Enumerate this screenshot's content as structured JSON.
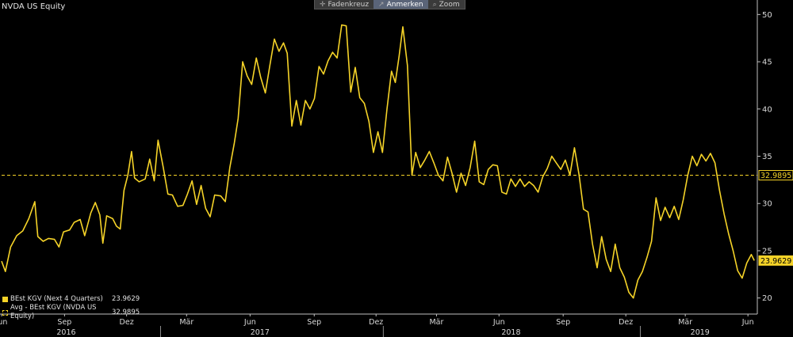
{
  "ticker": "NVDA US Equity",
  "toolbar": [
    {
      "icon": "crosshair-icon",
      "glyph": "✛",
      "label": "Fadenkreuz",
      "active": false
    },
    {
      "icon": "annotate-icon",
      "glyph": "↗",
      "label": "Anmerken",
      "active": true
    },
    {
      "icon": "zoom-icon",
      "glyph": "⌕",
      "label": "Zoom",
      "active": false
    }
  ],
  "legend": [
    {
      "label": "BEst KGV (Next 4 Quarters)",
      "value": "23.9629",
      "color": "#f5d328",
      "style": "solid"
    },
    {
      "label": "Avg - BEst KGV (NVDA US Equity)",
      "value": "32.9895",
      "color": "#f5d328",
      "style": "dashed"
    }
  ],
  "chart_data": {
    "type": "line",
    "y_axis": {
      "ticks": [
        20,
        25,
        30,
        35,
        40,
        45,
        50
      ],
      "range": [
        18.3,
        51.2
      ],
      "side": "right"
    },
    "x_axis": {
      "month_ticks": [
        {
          "label": "Jun",
          "pos": 0.0
        },
        {
          "label": "Sep",
          "pos": 0.0833
        },
        {
          "label": "Dez",
          "pos": 0.1654
        },
        {
          "label": "Mär",
          "pos": 0.2448
        },
        {
          "label": "Jun",
          "pos": 0.3288
        },
        {
          "label": "Sep",
          "pos": 0.4137
        },
        {
          "label": "Dez",
          "pos": 0.4955
        },
        {
          "label": "Mär",
          "pos": 0.5755
        },
        {
          "label": "Jun",
          "pos": 0.6582
        },
        {
          "label": "Sep",
          "pos": 0.7431
        },
        {
          "label": "Dez",
          "pos": 0.826
        },
        {
          "label": "Mär",
          "pos": 0.9047
        },
        {
          "label": "Jun",
          "pos": 0.9876
        }
      ],
      "year_labels": [
        {
          "label": "2016",
          "pos": 0.0855
        },
        {
          "label": "2017",
          "pos": 0.3419
        },
        {
          "label": "2018",
          "pos": 0.6741
        },
        {
          "label": "2019",
          "pos": 0.9242
        }
      ],
      "year_boundaries": [
        0.2104,
        0.5051,
        0.8452
      ]
    },
    "average": {
      "value": 32.9895,
      "label": "32.9895"
    },
    "last": {
      "value": 23.9629,
      "label": "23.9629"
    },
    "series": [
      {
        "name": "BEst KGV (Next 4 Quarters)",
        "color": "#f5d328",
        "values": [
          [
            0.0,
            23.9
          ],
          [
            0.005,
            22.8
          ],
          [
            0.012,
            25.4
          ],
          [
            0.02,
            26.6
          ],
          [
            0.028,
            27.1
          ],
          [
            0.036,
            28.4
          ],
          [
            0.044,
            30.2
          ],
          [
            0.048,
            26.5
          ],
          [
            0.055,
            26.0
          ],
          [
            0.062,
            26.3
          ],
          [
            0.07,
            26.2
          ],
          [
            0.076,
            25.4
          ],
          [
            0.082,
            27.0
          ],
          [
            0.09,
            27.2
          ],
          [
            0.096,
            28.0
          ],
          [
            0.104,
            28.3
          ],
          [
            0.11,
            26.6
          ],
          [
            0.118,
            29.0
          ],
          [
            0.124,
            30.1
          ],
          [
            0.13,
            28.8
          ],
          [
            0.134,
            25.8
          ],
          [
            0.139,
            28.7
          ],
          [
            0.147,
            28.4
          ],
          [
            0.152,
            27.6
          ],
          [
            0.157,
            27.3
          ],
          [
            0.162,
            31.4
          ],
          [
            0.167,
            33.0
          ],
          [
            0.172,
            35.5
          ],
          [
            0.176,
            32.7
          ],
          [
            0.182,
            32.3
          ],
          [
            0.19,
            32.6
          ],
          [
            0.196,
            34.7
          ],
          [
            0.202,
            32.4
          ],
          [
            0.207,
            36.7
          ],
          [
            0.214,
            33.8
          ],
          [
            0.22,
            31.0
          ],
          [
            0.226,
            30.9
          ],
          [
            0.233,
            29.7
          ],
          [
            0.24,
            29.8
          ],
          [
            0.246,
            31.0
          ],
          [
            0.252,
            32.4
          ],
          [
            0.258,
            29.9
          ],
          [
            0.264,
            31.9
          ],
          [
            0.27,
            29.5
          ],
          [
            0.276,
            28.6
          ],
          [
            0.282,
            30.9
          ],
          [
            0.29,
            30.8
          ],
          [
            0.296,
            30.2
          ],
          [
            0.302,
            33.8
          ],
          [
            0.308,
            36.4
          ],
          [
            0.313,
            39.0
          ],
          [
            0.319,
            45.0
          ],
          [
            0.325,
            43.5
          ],
          [
            0.331,
            42.6
          ],
          [
            0.337,
            45.4
          ],
          [
            0.343,
            43.3
          ],
          [
            0.349,
            41.7
          ],
          [
            0.355,
            44.6
          ],
          [
            0.361,
            47.4
          ],
          [
            0.367,
            46.1
          ],
          [
            0.373,
            47.0
          ],
          [
            0.378,
            45.9
          ],
          [
            0.384,
            38.2
          ],
          [
            0.39,
            40.9
          ],
          [
            0.396,
            38.3
          ],
          [
            0.402,
            40.9
          ],
          [
            0.408,
            40.0
          ],
          [
            0.414,
            41.1
          ],
          [
            0.42,
            44.5
          ],
          [
            0.426,
            43.7
          ],
          [
            0.432,
            45.1
          ],
          [
            0.438,
            46.0
          ],
          [
            0.444,
            45.4
          ],
          [
            0.45,
            48.9
          ],
          [
            0.456,
            48.8
          ],
          [
            0.462,
            41.8
          ],
          [
            0.468,
            44.4
          ],
          [
            0.474,
            41.2
          ],
          [
            0.48,
            40.6
          ],
          [
            0.486,
            38.7
          ],
          [
            0.492,
            35.4
          ],
          [
            0.498,
            37.6
          ],
          [
            0.504,
            35.4
          ],
          [
            0.51,
            40.0
          ],
          [
            0.516,
            44.0
          ],
          [
            0.521,
            42.8
          ],
          [
            0.526,
            45.6
          ],
          [
            0.531,
            48.7
          ],
          [
            0.537,
            44.6
          ],
          [
            0.543,
            33.0
          ],
          [
            0.548,
            35.4
          ],
          [
            0.554,
            33.8
          ],
          [
            0.56,
            34.6
          ],
          [
            0.566,
            35.5
          ],
          [
            0.572,
            34.3
          ],
          [
            0.578,
            33.0
          ],
          [
            0.584,
            32.4
          ],
          [
            0.59,
            34.9
          ],
          [
            0.596,
            33.2
          ],
          [
            0.602,
            31.2
          ],
          [
            0.608,
            33.2
          ],
          [
            0.614,
            31.9
          ],
          [
            0.62,
            33.8
          ],
          [
            0.626,
            36.6
          ],
          [
            0.632,
            32.3
          ],
          [
            0.638,
            32.0
          ],
          [
            0.644,
            33.6
          ],
          [
            0.65,
            34.1
          ],
          [
            0.656,
            34.0
          ],
          [
            0.662,
            31.2
          ],
          [
            0.668,
            31.0
          ],
          [
            0.674,
            32.6
          ],
          [
            0.68,
            31.8
          ],
          [
            0.686,
            32.6
          ],
          [
            0.692,
            31.8
          ],
          [
            0.698,
            32.3
          ],
          [
            0.704,
            31.9
          ],
          [
            0.71,
            31.2
          ],
          [
            0.716,
            32.8
          ],
          [
            0.722,
            33.7
          ],
          [
            0.728,
            35.0
          ],
          [
            0.734,
            34.3
          ],
          [
            0.74,
            33.6
          ],
          [
            0.746,
            34.6
          ],
          [
            0.752,
            33.0
          ],
          [
            0.758,
            35.9
          ],
          [
            0.764,
            33.1
          ],
          [
            0.77,
            29.4
          ],
          [
            0.776,
            29.1
          ],
          [
            0.782,
            25.7
          ],
          [
            0.788,
            23.2
          ],
          [
            0.794,
            26.5
          ],
          [
            0.8,
            24.1
          ],
          [
            0.806,
            22.8
          ],
          [
            0.812,
            25.7
          ],
          [
            0.818,
            23.2
          ],
          [
            0.824,
            22.2
          ],
          [
            0.83,
            20.6
          ],
          [
            0.836,
            20.0
          ],
          [
            0.842,
            21.9
          ],
          [
            0.848,
            22.8
          ],
          [
            0.854,
            24.3
          ],
          [
            0.86,
            26.0
          ],
          [
            0.866,
            30.6
          ],
          [
            0.872,
            28.2
          ],
          [
            0.878,
            29.6
          ],
          [
            0.884,
            28.5
          ],
          [
            0.89,
            29.7
          ],
          [
            0.896,
            28.3
          ],
          [
            0.902,
            30.4
          ],
          [
            0.908,
            33.0
          ],
          [
            0.914,
            35.0
          ],
          [
            0.92,
            34.0
          ],
          [
            0.926,
            35.2
          ],
          [
            0.932,
            34.5
          ],
          [
            0.938,
            35.3
          ],
          [
            0.944,
            34.3
          ],
          [
            0.95,
            31.4
          ],
          [
            0.956,
            28.9
          ],
          [
            0.962,
            26.8
          ],
          [
            0.968,
            25.0
          ],
          [
            0.974,
            22.9
          ],
          [
            0.98,
            22.1
          ],
          [
            0.986,
            23.7
          ],
          [
            0.992,
            24.6
          ],
          [
            0.996,
            23.96
          ]
        ]
      }
    ]
  }
}
